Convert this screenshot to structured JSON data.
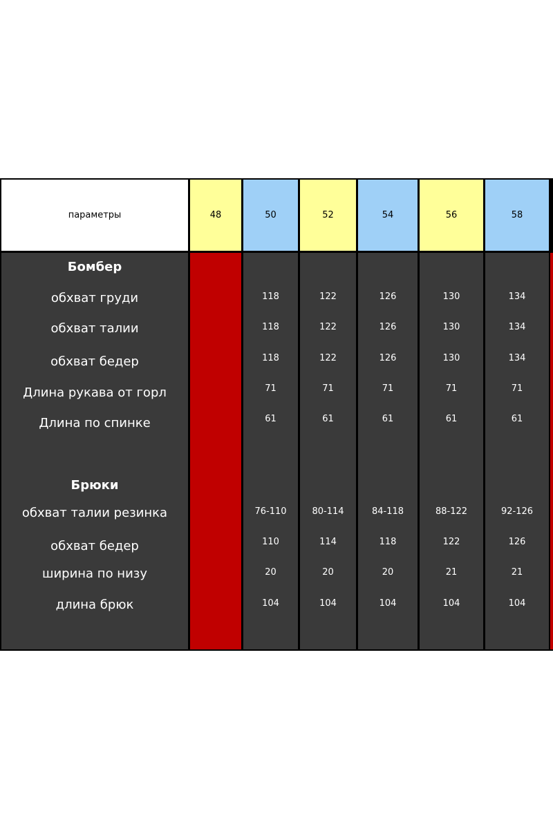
{
  "header": {
    "params_label": "параметры",
    "sizes": [
      "48",
      "50",
      "52",
      "54",
      "56",
      "58"
    ]
  },
  "colors": {
    "yellow": "#ffff99",
    "blue": "#9fd0f7",
    "dark": "#3a3a3a",
    "red": "#c00000"
  },
  "bomber": {
    "title": "Бомбер",
    "rows": [
      {
        "label": "обхват груди",
        "values": [
          "",
          "118",
          "122",
          "126",
          "130",
          "134"
        ]
      },
      {
        "label": "обхват талии",
        "values": [
          "",
          "118",
          "122",
          "126",
          "130",
          "134"
        ]
      },
      {
        "label": "обхват бедер",
        "values": [
          "",
          "118",
          "122",
          "126",
          "130",
          "134"
        ]
      },
      {
        "label": "Длина рукава от горл",
        "values": [
          "",
          "71",
          "71",
          "71",
          "71",
          "71"
        ]
      },
      {
        "label": "Длина по спинке",
        "values": [
          "",
          "61",
          "61",
          "61",
          "61",
          "61"
        ]
      }
    ]
  },
  "trousers": {
    "title": "Брюки",
    "rows": [
      {
        "label": "обхват талии резинка",
        "values": [
          "",
          "76-110",
          "80-114",
          "84-118",
          "88-122",
          "92-126"
        ]
      },
      {
        "label": "обхват бедер",
        "values": [
          "",
          "110",
          "114",
          "118",
          "122",
          "126"
        ]
      },
      {
        "label": "ширина по низу",
        "values": [
          "",
          "20",
          "20",
          "20",
          "21",
          "21"
        ]
      },
      {
        "label": "длина брюк",
        "values": [
          "",
          "104",
          "104",
          "104",
          "104",
          "104"
        ]
      }
    ]
  }
}
